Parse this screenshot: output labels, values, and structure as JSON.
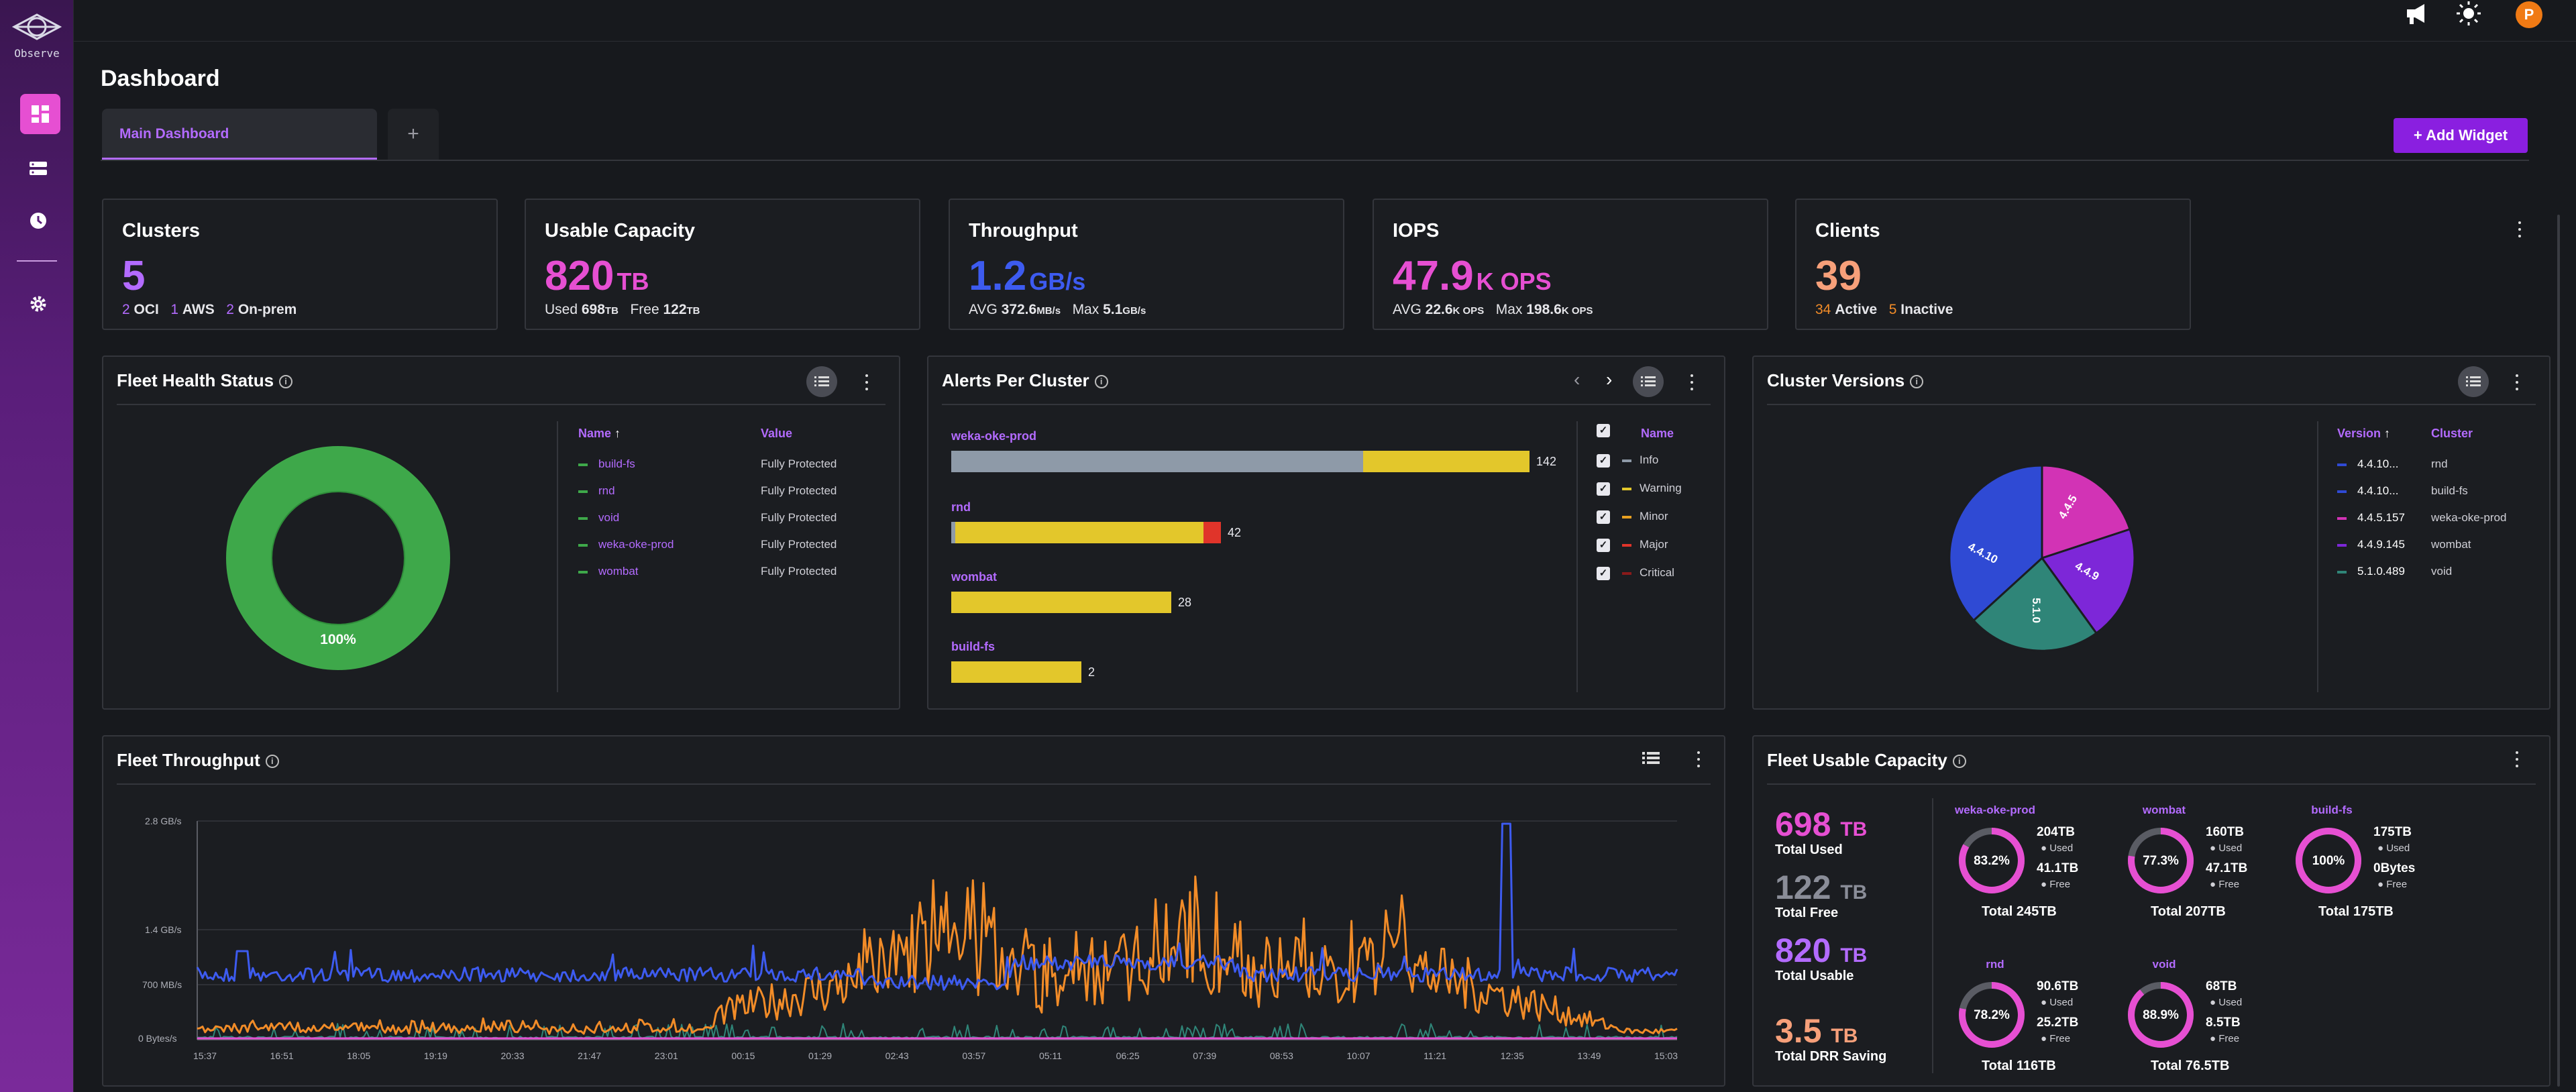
{
  "app": {
    "logo_text": "Observe"
  },
  "header": {
    "title": "Dashboard",
    "avatar_letter": "P"
  },
  "tabs": [
    {
      "label": "Main Dashboard"
    },
    {
      "label": "+"
    }
  ],
  "add_widget_label": "+ Add Widget",
  "kpis": {
    "clusters": {
      "title": "Clusters",
      "value": "5",
      "oci_n": "2",
      "oci": "OCI",
      "aws_n": "1",
      "aws": "AWS",
      "onprem_n": "2",
      "onprem": "On-prem"
    },
    "capacity": {
      "title": "Usable Capacity",
      "value": "820",
      "unit": "TB",
      "used_label": "Used",
      "used_val": "698",
      "used_unit": "TB",
      "free_label": "Free",
      "free_val": "122",
      "free_unit": "TB"
    },
    "throughput": {
      "title": "Throughput",
      "value": "1.2",
      "unit": "GB/s",
      "avg_label": "AVG",
      "avg_val": "372.6",
      "avg_unit": "MB/s",
      "max_label": "Max",
      "max_val": "5.1",
      "max_unit": "GB/s"
    },
    "iops": {
      "title": "IOPS",
      "value": "47.9",
      "unit": "K OPS",
      "avg_label": "AVG",
      "avg_val": "22.6",
      "avg_unit": "K OPS",
      "max_label": "Max",
      "max_val": "198.6",
      "max_unit": "K OPS"
    },
    "clients": {
      "title": "Clients",
      "value": "39",
      "active_n": "34",
      "active": "Active",
      "inactive_n": "5",
      "inactive": "Inactive"
    }
  },
  "fleet_health": {
    "title": "Fleet Health Status",
    "center_label": "100%",
    "col_name": "Name",
    "col_value": "Value",
    "sort_icon": "↑",
    "rows": [
      {
        "name": "build-fs",
        "value": "Fully Protected"
      },
      {
        "name": "rnd",
        "value": "Fully Protected"
      },
      {
        "name": "void",
        "value": "Fully Protected"
      },
      {
        "name": "weka-oke-prod",
        "value": "Fully Protected"
      },
      {
        "name": "wombat",
        "value": "Fully Protected"
      }
    ]
  },
  "alerts": {
    "title": "Alerts Per Cluster",
    "legend_header": "Name",
    "legend": [
      {
        "name": "Info",
        "color": "#8e9aa8"
      },
      {
        "name": "Warning",
        "color": "#e3c72b"
      },
      {
        "name": "Minor",
        "color": "#e8a020"
      },
      {
        "name": "Major",
        "color": "#e0342a"
      },
      {
        "name": "Critical",
        "color": "#8a1a1a"
      }
    ],
    "bars": [
      {
        "cluster": "weka-oke-prod",
        "total": "142"
      },
      {
        "cluster": "rnd",
        "total": "42"
      },
      {
        "cluster": "wombat",
        "total": "28"
      },
      {
        "cluster": "build-fs",
        "total": "2"
      }
    ]
  },
  "versions": {
    "title": "Cluster Versions",
    "col_version": "Version",
    "col_cluster": "Cluster",
    "sort_icon": "↑",
    "rows": [
      {
        "version": "4.4.10...",
        "cluster": "rnd",
        "color": "#2f4ad4"
      },
      {
        "version": "4.4.10...",
        "cluster": "build-fs",
        "color": "#2f4ad4"
      },
      {
        "version": "4.4.5.157",
        "cluster": "weka-oke-prod",
        "color": "#d233b5"
      },
      {
        "version": "4.4.9.145",
        "cluster": "wombat",
        "color": "#7d27d8"
      },
      {
        "version": "5.1.0.489",
        "cluster": "void",
        "color": "#2f8578"
      }
    ],
    "slice_labels": {
      "a": "4.4.10",
      "b": "4.4.5",
      "c": "4.4.9",
      "d": "5.1.0"
    }
  },
  "fleet_throughput": {
    "title": "Fleet Throughput",
    "y_ticks": [
      "2.8 GB/s",
      "1.4 GB/s",
      "700 MB/s",
      "0 Bytes/s"
    ],
    "x_ticks": [
      "15:37",
      "16:51",
      "18:05",
      "19:19",
      "20:33",
      "21:47",
      "23:01",
      "00:15",
      "01:29",
      "02:43",
      "03:57",
      "05:11",
      "06:25",
      "07:39",
      "08:53",
      "10:07",
      "11:21",
      "12:35",
      "13:49",
      "15:03"
    ]
  },
  "fleet_capacity": {
    "title": "Fleet Usable Capacity",
    "used_val": "698",
    "used_unit": "TB",
    "used_label": "Total Used",
    "free_val": "122",
    "free_unit": "TB",
    "free_label": "Total Free",
    "usable_val": "820",
    "usable_unit": "TB",
    "usable_label": "Total Usable",
    "drr_val": "3.5",
    "drr_unit": "TB",
    "drr_label": "Total DRR Saving",
    "used_word": "Used",
    "free_word": "Free",
    "rings": [
      {
        "name": "weka-oke-prod",
        "pct": "83.2%",
        "used": "204",
        "used_unit": "TB",
        "free": "41.1",
        "free_unit": "TB",
        "total": "Total 245TB"
      },
      {
        "name": "wombat",
        "pct": "77.3%",
        "used": "160",
        "used_unit": "TB",
        "free": "47.1",
        "free_unit": "TB",
        "total": "Total 207TB"
      },
      {
        "name": "build-fs",
        "pct": "100%",
        "used": "175",
        "used_unit": "TB",
        "free": "0",
        "free_unit": "Bytes",
        "total": "Total 175TB"
      },
      {
        "name": "rnd",
        "pct": "78.2%",
        "used": "90.6",
        "used_unit": "TB",
        "free": "25.2",
        "free_unit": "TB",
        "total": "Total 116TB"
      },
      {
        "name": "void",
        "pct": "88.9%",
        "used": "68",
        "used_unit": "TB",
        "free": "8.5",
        "free_unit": "TB",
        "total": "Total 76.5TB"
      }
    ]
  },
  "colors": {
    "accent": "#b02ee0",
    "pink": "#e64fd2",
    "blue": "#3d5bf0",
    "orange": "#f28c28",
    "teal": "#2f8578"
  }
}
